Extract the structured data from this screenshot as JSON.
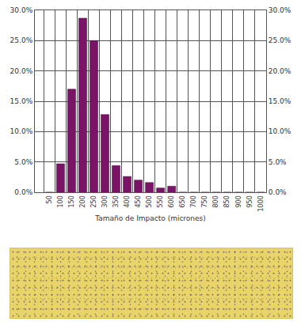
{
  "chart_data": {
    "type": "bar",
    "x_label": "Tamaño de Impacto (micrones)",
    "categories": [
      "50",
      "100",
      "150",
      "200",
      "250",
      "300",
      "350",
      "400",
      "450",
      "500",
      "550",
      "600",
      "650",
      "700",
      "750",
      "800",
      "850",
      "900",
      "950",
      "1000"
    ],
    "values": [
      0,
      4.7,
      17.0,
      28.7,
      25.0,
      12.8,
      4.4,
      2.6,
      2.0,
      1.6,
      0.7,
      1.0,
      0,
      0,
      0,
      0,
      0,
      0,
      0,
      0
    ],
    "color": "#7a1467",
    "ylim": [
      0,
      30
    ],
    "yticks": [
      {
        "value": 0,
        "label": "0.0%"
      },
      {
        "value": 5,
        "label": "5.0%"
      },
      {
        "value": 10,
        "label": "10.0%"
      },
      {
        "value": 15,
        "label": "15.0%"
      },
      {
        "value": 20,
        "label": "20.0%"
      },
      {
        "value": 25,
        "label": "25.0%"
      },
      {
        "value": 30,
        "label": "30.0%"
      }
    ],
    "y2lim": [
      0,
      30
    ],
    "y2ticks": [
      {
        "value": 0,
        "label": "0.0%"
      },
      {
        "value": 5,
        "label": "5.0%"
      },
      {
        "value": 10,
        "label": "10.0%"
      },
      {
        "value": 15,
        "label": "15.0%"
      },
      {
        "value": 20,
        "label": "20.0%"
      },
      {
        "value": 25,
        "label": "25.0%"
      },
      {
        "value": 30,
        "label": "30.0%"
      }
    ],
    "grid": true
  }
}
